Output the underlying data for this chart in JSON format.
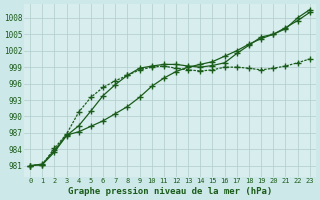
{
  "background_color": "#cde8e8",
  "plot_bg_color": "#d8eeee",
  "grid_color": "#b0cccc",
  "line_color": "#1a5c1a",
  "title": "Graphe pression niveau de la mer (hPa)",
  "ylabel_ticks": [
    981,
    984,
    987,
    990,
    993,
    996,
    999,
    1002,
    1005,
    1008
  ],
  "xlim": [
    -0.5,
    23.5
  ],
  "ylim": [
    979.0,
    1010.5
  ],
  "series1_x": [
    0,
    1,
    2,
    3,
    4,
    5,
    6,
    7,
    8,
    9,
    10,
    11,
    12,
    13,
    14,
    15,
    16,
    17,
    18,
    19,
    20,
    21,
    22,
    23
  ],
  "series1_y": [
    981,
    981.3,
    983.8,
    986.6,
    987.2,
    988.2,
    989.2,
    990.5,
    991.8,
    993.5,
    995.5,
    997.0,
    998.2,
    999.0,
    999.5,
    1000.0,
    1001.0,
    1002.0,
    1003.2,
    1004.2,
    1005.0,
    1006.2,
    1007.5,
    1009.0
  ],
  "series2_x": [
    0,
    1,
    2,
    3,
    4,
    5,
    6,
    7,
    8,
    9,
    10,
    11,
    12,
    13,
    14,
    15,
    16,
    17,
    18,
    19,
    20,
    21,
    22,
    23
  ],
  "series2_y": [
    981,
    981.2,
    983.5,
    986.5,
    988.3,
    991.0,
    993.8,
    995.8,
    997.5,
    998.8,
    999.2,
    999.5,
    999.5,
    999.2,
    999.0,
    999.3,
    999.8,
    1001.5,
    1003.0,
    1004.5,
    1005.0,
    1006.0,
    1008.0,
    1009.5
  ],
  "series3_x": [
    0,
    1,
    2,
    3,
    4,
    5,
    6,
    7,
    8,
    9,
    10,
    11,
    12,
    13,
    14,
    15,
    16,
    17,
    18,
    19,
    20,
    21,
    22,
    23
  ],
  "series3_y": [
    981,
    981.2,
    984.2,
    986.8,
    990.8,
    993.5,
    995.3,
    996.5,
    997.5,
    998.5,
    999.0,
    999.2,
    998.8,
    998.5,
    998.3,
    998.5,
    999.0,
    999.0,
    998.8,
    998.5,
    998.8,
    999.2,
    999.8,
    1000.5
  ],
  "marker": "+",
  "markersize": 4,
  "linewidth": 0.9
}
